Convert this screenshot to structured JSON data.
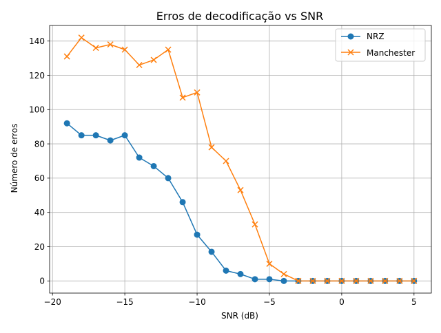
{
  "chart_data": {
    "type": "line",
    "title": "Erros de decodificação vs SNR",
    "xlabel": "SNR (dB)",
    "ylabel": "Número de erros",
    "xlim": [
      -20.2,
      6.2
    ],
    "ylim": [
      -7.1,
      149.1
    ],
    "xticks": [
      -20,
      -15,
      -10,
      -5,
      0,
      5
    ],
    "yticks": [
      0,
      20,
      40,
      60,
      80,
      100,
      120,
      140
    ],
    "grid": true,
    "legend_position": "top-right",
    "x": [
      -19,
      -18,
      -17,
      -16,
      -15,
      -14,
      -13,
      -12,
      -11,
      -10,
      -9,
      -8,
      -7,
      -6,
      -5,
      -4,
      -3,
      -2,
      -1,
      0,
      1,
      2,
      3,
      4,
      5
    ],
    "series": [
      {
        "name": "NRZ",
        "color": "#1f77b4",
        "marker": "circle",
        "values": [
          92,
          85,
          85,
          82,
          85,
          72,
          67,
          60,
          46,
          27,
          17,
          6,
          4,
          1,
          1,
          0,
          0,
          0,
          0,
          0,
          0,
          0,
          0,
          0,
          0
        ]
      },
      {
        "name": "Manchester",
        "color": "#ff7f0e",
        "marker": "x",
        "values": [
          131,
          142,
          136,
          138,
          135,
          126,
          129,
          135,
          107,
          110,
          78,
          70,
          53,
          33,
          10,
          4,
          0,
          0,
          0,
          0,
          0,
          0,
          0,
          0,
          0
        ]
      }
    ]
  }
}
